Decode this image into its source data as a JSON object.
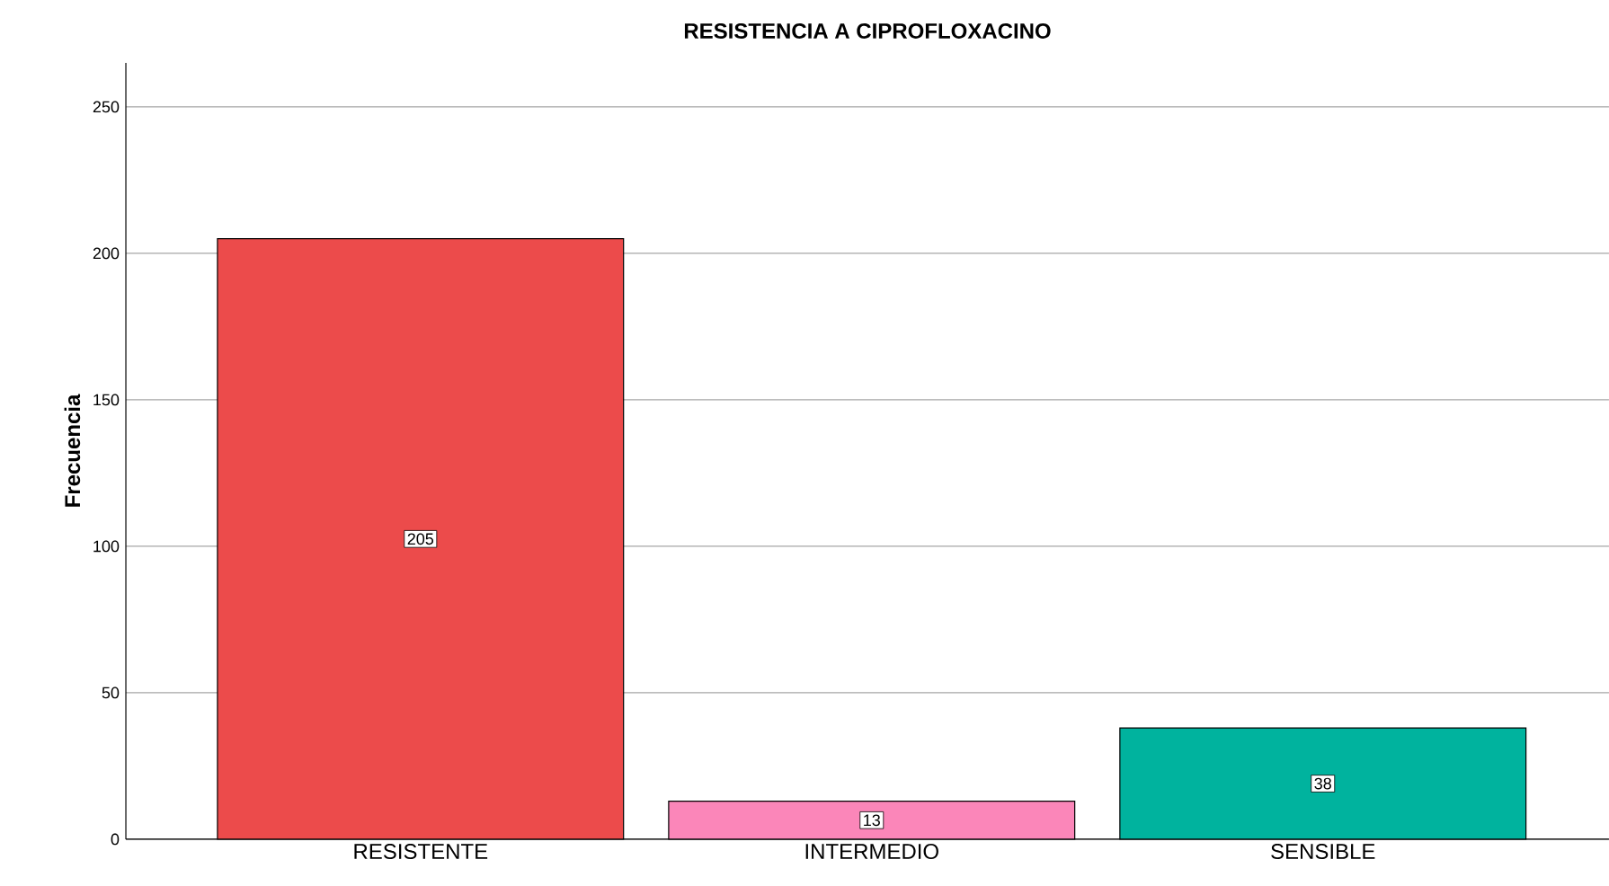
{
  "chart_data": {
    "type": "bar",
    "title": "RESISTENCIA A CIPROFLOXACINO",
    "ylabel": "Frecuencia",
    "categories": [
      "RESISTENTE",
      "INTERMEDIO",
      "SENSIBLE"
    ],
    "values": [
      205,
      13,
      38
    ],
    "colors": [
      "#ec4b4b",
      "#fb86b9",
      "#00b39e"
    ],
    "ylim": [
      0,
      265
    ],
    "yticks": [
      0,
      50,
      100,
      150,
      200,
      250
    ],
    "grid": "y",
    "data_labels": true
  }
}
